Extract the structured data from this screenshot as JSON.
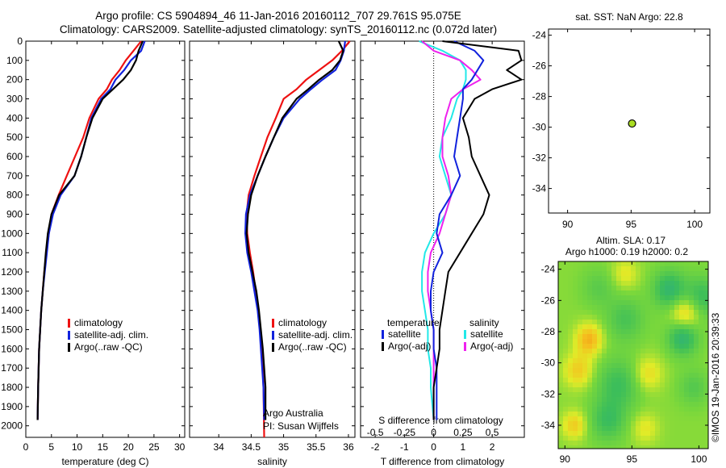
{
  "header": {
    "line1": "Argo profile: CS 5904894_46 11-Jan-2016 20160112_707 29.761S 95.075E",
    "line2": "Climatology: CARS2009. Satellite-adjusted climatology: synTS_20160112.nc (0.072d later)"
  },
  "credit": "©IMOS 19-Jan-2016 20:39:33",
  "colors": {
    "climatology": "#ee1111",
    "satellite": "#1122dd",
    "argo": "#000000",
    "sal_satellite": "#22e8e8",
    "sal_argo": "#ee22ee",
    "marker": "#aadd22"
  },
  "chart_data": [
    {
      "id": "temperature",
      "type": "line",
      "xlabel": "temperature (deg C)",
      "ylabel": "",
      "xlim": [
        0,
        31
      ],
      "ylim": [
        0,
        2060
      ],
      "y_inverted": true,
      "x_ticks": [
        0,
        5,
        10,
        15,
        20,
        25,
        30
      ],
      "y_ticks": [
        0,
        100,
        200,
        300,
        400,
        500,
        600,
        700,
        800,
        900,
        1000,
        1100,
        1200,
        1300,
        1400,
        1500,
        1600,
        1700,
        1800,
        1900,
        2000
      ],
      "legend": [
        "climatology",
        "satellite-adj. clim.",
        "Argo(..raw -QC)"
      ],
      "series": [
        {
          "name": "climatology",
          "color": "#ee1111",
          "x": [
            22.5,
            21.0,
            19.5,
            18.3,
            16.8,
            15.8,
            14.2,
            12.4,
            11.2,
            9.6,
            8.0,
            6.4,
            5.0,
            4.5,
            4.0,
            3.6,
            3.3,
            3.0,
            2.8,
            2.6,
            2.5,
            2.4,
            2.3
          ],
          "y": [
            0,
            50,
            100,
            150,
            200,
            250,
            300,
            400,
            500,
            600,
            700,
            800,
            900,
            1000,
            1100,
            1200,
            1300,
            1400,
            1500,
            1600,
            1700,
            1800,
            1970
          ]
        },
        {
          "name": "satellite-adj. clim.",
          "color": "#1122dd",
          "x": [
            23.2,
            22.5,
            20.5,
            19.2,
            17.5,
            16.5,
            14.7,
            12.8,
            11.8,
            10.8,
            9.5,
            6.8,
            5.3,
            4.5,
            4.1,
            3.7,
            3.3,
            3.0,
            2.8,
            2.6,
            2.5,
            2.4,
            2.3
          ],
          "y": [
            0,
            50,
            100,
            150,
            200,
            250,
            300,
            400,
            500,
            600,
            700,
            800,
            900,
            1000,
            1100,
            1200,
            1300,
            1400,
            1500,
            1600,
            1700,
            1800,
            1970
          ]
        },
        {
          "name": "Argo(..raw -QC)",
          "color": "#000000",
          "x": [
            22.8,
            22.0,
            21.5,
            20.5,
            19.0,
            17.0,
            15.0,
            13.0,
            11.8,
            10.8,
            9.5,
            6.5,
            5.0,
            4.3,
            3.9,
            3.6,
            3.3,
            3.0,
            2.8,
            2.6,
            2.5,
            2.4,
            2.3
          ],
          "y": [
            0,
            50,
            100,
            150,
            200,
            250,
            300,
            400,
            500,
            600,
            700,
            800,
            900,
            1000,
            1100,
            1200,
            1300,
            1400,
            1500,
            1600,
            1700,
            1800,
            1970
          ]
        }
      ]
    },
    {
      "id": "salinity",
      "type": "line",
      "xlabel": "salinity",
      "xlim": [
        33.55,
        36.1
      ],
      "ylim": [
        0,
        2060
      ],
      "y_inverted": true,
      "x_ticks": [
        34,
        34.5,
        35,
        35.5,
        36
      ],
      "legend": [
        "climatology",
        "satellite-adj. clim.",
        "Argo(..raw -QC)"
      ],
      "annotation": [
        "Argo Australia",
        "PI: Susan Wijffels"
      ],
      "series": [
        {
          "name": "climatology",
          "color": "#ee1111",
          "x": [
            36.02,
            35.9,
            35.75,
            35.55,
            35.35,
            35.2,
            35.0,
            34.88,
            34.75,
            34.65,
            34.55,
            34.46,
            34.43,
            34.44,
            34.48,
            34.53,
            34.57,
            34.61,
            34.64,
            34.66,
            34.68,
            34.69,
            34.7
          ],
          "y": [
            0,
            50,
            100,
            150,
            200,
            250,
            300,
            400,
            500,
            600,
            700,
            800,
            900,
            1000,
            1100,
            1200,
            1300,
            1400,
            1500,
            1600,
            1700,
            1800,
            2060
          ]
        },
        {
          "name": "satellite-adj. clim.",
          "color": "#1122dd",
          "x": [
            35.95,
            35.93,
            35.88,
            35.8,
            35.6,
            35.42,
            35.25,
            35.0,
            34.85,
            34.72,
            34.6,
            34.48,
            34.42,
            34.41,
            34.44,
            34.5,
            34.55,
            34.6,
            34.63,
            34.65,
            34.67,
            34.69,
            34.7
          ],
          "y": [
            0,
            50,
            100,
            150,
            200,
            250,
            300,
            400,
            500,
            600,
            700,
            800,
            900,
            1000,
            1100,
            1200,
            1300,
            1400,
            1500,
            1600,
            1700,
            1800,
            1970
          ]
        },
        {
          "name": "Argo(..raw -QC)",
          "color": "#000000",
          "x": [
            35.85,
            35.92,
            35.87,
            35.75,
            35.55,
            35.38,
            35.2,
            34.98,
            34.85,
            34.72,
            34.6,
            34.5,
            34.45,
            34.43,
            34.46,
            34.52,
            34.58,
            34.62,
            34.65,
            34.68,
            34.7,
            34.72,
            34.72
          ],
          "y": [
            0,
            50,
            100,
            150,
            200,
            250,
            300,
            400,
            500,
            600,
            700,
            800,
            900,
            1000,
            1100,
            1200,
            1300,
            1400,
            1500,
            1600,
            1700,
            1800,
            1970
          ]
        }
      ]
    },
    {
      "id": "difference",
      "type": "line",
      "xlabel": "T difference from climatology",
      "x2label": "S difference from climatology",
      "xlim": [
        -2.5,
        3.1
      ],
      "ylim": [
        0,
        2060
      ],
      "y_inverted": true,
      "x_ticks": [
        -2,
        -1,
        0,
        1,
        2
      ],
      "x2_ticks": [
        "-0.5",
        "-0.25",
        "0",
        "0.25",
        "0.5"
      ],
      "legend_headings": [
        "temperature",
        "salinity"
      ],
      "legend": [
        "satellite",
        "Argo(-adj)",
        "satellite",
        "Argo(-adj)"
      ],
      "zero_line": 0,
      "series": [
        {
          "name": "satellite",
          "color": "#1122dd",
          "x": [
            0.7,
            1.4,
            1.7,
            1.5,
            1.3,
            1.0,
            1.0,
            0.9,
            0.8,
            0.7,
            0.9,
            0.6,
            0.2,
            0.1,
            0.3,
            0.0,
            -0.1,
            -0.1,
            0.0,
            0.0,
            0.1,
            0.1,
            0.1
          ],
          "y": [
            0,
            50,
            100,
            150,
            200,
            250,
            300,
            400,
            500,
            600,
            700,
            800,
            900,
            1000,
            1100,
            1200,
            1300,
            1400,
            1500,
            1600,
            1700,
            1800,
            1970
          ]
        },
        {
          "name": "Argo(-adj)",
          "color": "#000000",
          "x": [
            0.3,
            2.9,
            3.0,
            2.5,
            3.0,
            2.0,
            1.4,
            1.0,
            1.2,
            1.3,
            1.6,
            1.9,
            1.7,
            1.3,
            0.9,
            0.5,
            0.4,
            0.3,
            0.2,
            0.2,
            0.1,
            0.0,
            0.0
          ],
          "y": [
            0,
            50,
            100,
            150,
            200,
            250,
            300,
            400,
            500,
            600,
            700,
            800,
            900,
            1000,
            1100,
            1200,
            1300,
            1400,
            1500,
            1600,
            1700,
            1800,
            1970
          ]
        },
        {
          "name": "satellite",
          "color": "#22e8e8",
          "x": [
            -0.5,
            0.3,
            0.9,
            1.1,
            1.1,
            1.0,
            0.8,
            0.6,
            0.3,
            0.2,
            0.4,
            0.6,
            0.4,
            0.0,
            -0.3,
            -0.4,
            -0.4,
            -0.3,
            -0.2,
            -0.2,
            -0.1,
            -0.1,
            0.0
          ],
          "y": [
            0,
            50,
            100,
            150,
            200,
            250,
            300,
            400,
            500,
            600,
            700,
            800,
            900,
            1000,
            1100,
            1200,
            1300,
            1400,
            1500,
            1600,
            1700,
            1800,
            1970
          ]
        },
        {
          "name": "Argo(-adj)",
          "color": "#ee22ee",
          "x": [
            -0.4,
            0.0,
            0.9,
            1.3,
            1.6,
            1.0,
            0.6,
            0.4,
            0.3,
            0.3,
            0.5,
            0.6,
            0.4,
            0.2,
            -0.1,
            -0.2,
            -0.2,
            -0.1,
            0.0,
            0.0,
            0.0,
            0.0,
            0.0
          ],
          "y": [
            0,
            50,
            100,
            150,
            200,
            250,
            300,
            400,
            500,
            600,
            700,
            800,
            900,
            1000,
            1100,
            1200,
            1300,
            1400,
            1500,
            1600,
            1700,
            1800,
            1970
          ]
        }
      ]
    },
    {
      "id": "sst-location",
      "type": "scatter",
      "title": "sat. SST: NaN Argo: 22.8",
      "xlim": [
        88.5,
        101.2
      ],
      "ylim": [
        -35.6,
        -23.6
      ],
      "x_ticks": [
        90,
        95,
        100
      ],
      "y_ticks": [
        -34,
        -32,
        -30,
        -28,
        -26,
        -24
      ],
      "points": [
        {
          "x": 95.075,
          "y": -29.761
        }
      ]
    },
    {
      "id": "altimetry",
      "type": "heatmap",
      "title_line1": "Altim. SLA: 0.17",
      "title_line2": "Argo h1000: 0.19 h2000: 0.2",
      "xlim": [
        89.5,
        100.7
      ],
      "ylim": [
        -35.5,
        -23.5
      ],
      "x_ticks": [
        90,
        95,
        100
      ],
      "y_ticks": [
        -34,
        -32,
        -30,
        -28,
        -26,
        -24
      ],
      "blobs": [
        {
          "lon": 97.8,
          "lat": -25.3,
          "r": 1.2,
          "v": -0.75
        },
        {
          "lon": 100.2,
          "lat": -25.8,
          "r": 1.3,
          "v": -0.6
        },
        {
          "lon": 94.5,
          "lat": -27.2,
          "r": 1.4,
          "v": -0.45
        },
        {
          "lon": 98.8,
          "lat": -28.4,
          "r": 1.1,
          "v": -0.8
        },
        {
          "lon": 94.0,
          "lat": -31.4,
          "r": 1.6,
          "v": -0.55
        },
        {
          "lon": 99.6,
          "lat": -31.6,
          "r": 1.1,
          "v": -0.35
        },
        {
          "lon": 93.2,
          "lat": -33.7,
          "r": 1.3,
          "v": -0.55
        },
        {
          "lon": 92.5,
          "lat": -25.2,
          "r": 1.2,
          "v": -0.3
        },
        {
          "lon": 91.8,
          "lat": -28.5,
          "r": 1.0,
          "v": 0.75
        },
        {
          "lon": 99.0,
          "lat": -26.8,
          "r": 1.1,
          "v": 0.65
        },
        {
          "lon": 91.0,
          "lat": -30.5,
          "r": 1.1,
          "v": 0.55
        },
        {
          "lon": 96.2,
          "lat": -30.7,
          "r": 1.1,
          "v": 0.45
        },
        {
          "lon": 96.0,
          "lat": -34.2,
          "r": 1.0,
          "v": 0.35
        },
        {
          "lon": 90.7,
          "lat": -34.0,
          "r": 0.9,
          "v": 0.55
        },
        {
          "lon": 94.5,
          "lat": -24.3,
          "r": 1.0,
          "v": 0.35
        }
      ]
    }
  ]
}
